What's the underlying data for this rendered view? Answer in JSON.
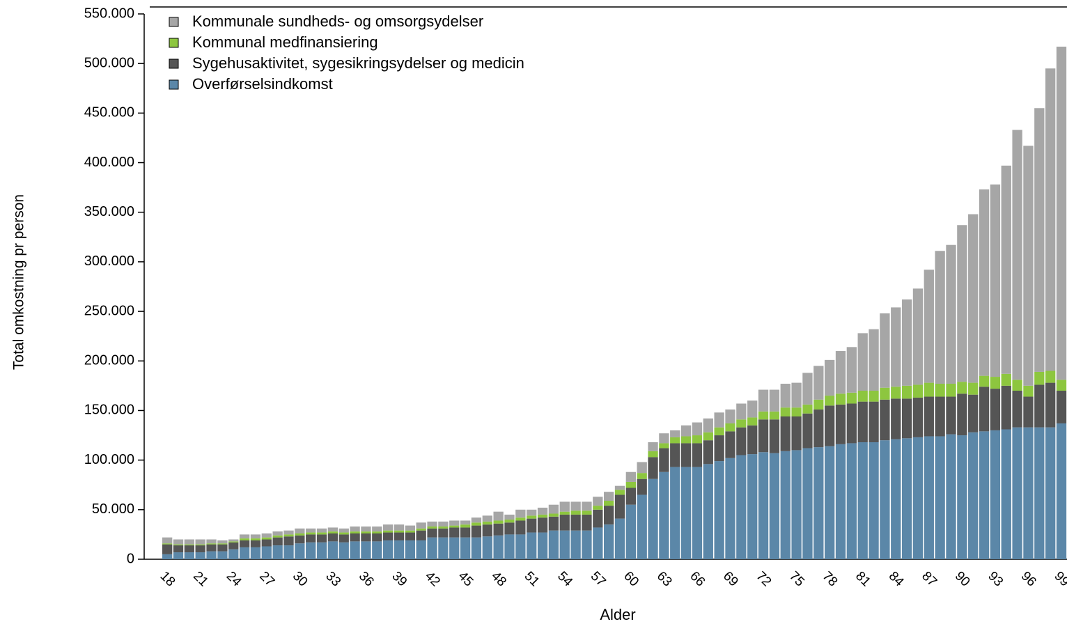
{
  "chart_data": {
    "type": "stacked_bar",
    "ylabel": "Total omkostning pr person",
    "xlabel": "Alder",
    "categories": [
      "18",
      null,
      null,
      "21",
      null,
      null,
      "24",
      null,
      null,
      "27",
      null,
      null,
      "30",
      null,
      null,
      "33",
      null,
      null,
      "36",
      null,
      null,
      "39",
      null,
      null,
      "42",
      null,
      null,
      "45",
      null,
      null,
      "48",
      null,
      null,
      "51",
      null,
      null,
      "54",
      null,
      null,
      "57",
      null,
      null,
      "60",
      null,
      null,
      "63",
      null,
      null,
      "66",
      null,
      null,
      "69",
      null,
      null,
      "72",
      null,
      null,
      "75",
      null,
      null,
      "78",
      null,
      null,
      "81",
      null,
      null,
      "84",
      null,
      null,
      "87",
      null,
      null,
      "90",
      null,
      null,
      "93",
      null,
      null,
      "96",
      null,
      null,
      "99"
    ],
    "series": [
      {
        "name": "Kommunale sundheds- og omsorgsydelser",
        "color": "#a6a6a6",
        "values": [
          6000,
          5000,
          5000,
          5000,
          4000,
          3000,
          2000,
          4000,
          4000,
          4000,
          4000,
          4000,
          5000,
          4000,
          4000,
          4000,
          4000,
          5000,
          5000,
          5000,
          6000,
          6000,
          5000,
          6000,
          5000,
          5000,
          5000,
          4000,
          5000,
          6000,
          9000,
          5000,
          8000,
          6000,
          7000,
          9000,
          10000,
          9000,
          9000,
          9000,
          9000,
          4000,
          10000,
          11000,
          9000,
          10000,
          7000,
          11000,
          13000,
          14000,
          15000,
          14000,
          16000,
          17000,
          22000,
          22000,
          24000,
          25000,
          32000,
          34000,
          36000,
          43000,
          46000,
          58000,
          62000,
          75000,
          80000,
          87000,
          97000,
          114000,
          134000,
          140000,
          158000,
          170000,
          188000,
          194000,
          210000,
          252000,
          242000,
          266000,
          305000,
          336000
        ]
      },
      {
        "name": "Kommunal medfinansiering",
        "color": "#8dc63f",
        "values": [
          1000,
          1000,
          1000,
          1000,
          1000,
          1000,
          1000,
          2000,
          2000,
          2000,
          2000,
          2000,
          2000,
          2000,
          2000,
          2000,
          2000,
          2000,
          2000,
          2000,
          2000,
          2000,
          2000,
          2000,
          2000,
          2000,
          2000,
          3000,
          3000,
          3000,
          3000,
          3000,
          3000,
          3000,
          3000,
          3000,
          3000,
          4000,
          4000,
          4000,
          5000,
          5000,
          6000,
          6000,
          6000,
          5000,
          6000,
          7000,
          8000,
          8000,
          8000,
          8000,
          8000,
          8000,
          8000,
          8000,
          9000,
          9000,
          9000,
          10000,
          10000,
          11000,
          11000,
          11000,
          11000,
          12000,
          12000,
          13000,
          13000,
          14000,
          13000,
          13000,
          12000,
          12000,
          11000,
          12000,
          12000,
          11000,
          11000,
          13000,
          12000,
          11000
        ]
      },
      {
        "name": "Sygehusaktivitet, sygesikringsydelser og medicin",
        "color": "#555555",
        "values": [
          10000,
          7000,
          7000,
          7000,
          7000,
          7000,
          7000,
          7000,
          7000,
          7000,
          8000,
          9000,
          8000,
          8000,
          8000,
          8000,
          8000,
          8000,
          8000,
          8000,
          8000,
          8000,
          8000,
          10000,
          9000,
          9000,
          10000,
          10000,
          12000,
          12000,
          12000,
          12000,
          14000,
          14000,
          15000,
          14000,
          16000,
          16000,
          16000,
          18000,
          19000,
          24000,
          17000,
          16000,
          22000,
          24000,
          24000,
          24000,
          24000,
          24000,
          26000,
          27000,
          28000,
          29000,
          33000,
          34000,
          35000,
          34000,
          35000,
          38000,
          41000,
          40000,
          40000,
          41000,
          41000,
          41000,
          41000,
          40000,
          40000,
          40000,
          40000,
          38000,
          42000,
          38000,
          45000,
          42000,
          44000,
          37000,
          31000,
          43000,
          45000,
          33000
        ]
      },
      {
        "name": "Overførselsindkomst",
        "color": "#5b87a8",
        "values": [
          5000,
          7000,
          7000,
          7000,
          8000,
          8000,
          10000,
          12000,
          12000,
          13000,
          14000,
          14000,
          16000,
          17000,
          17000,
          18000,
          17000,
          18000,
          18000,
          18000,
          19000,
          19000,
          19000,
          19000,
          22000,
          22000,
          22000,
          22000,
          22000,
          23000,
          24000,
          25000,
          25000,
          27000,
          27000,
          29000,
          29000,
          29000,
          29000,
          32000,
          35000,
          41000,
          55000,
          65000,
          81000,
          88000,
          93000,
          93000,
          93000,
          96000,
          99000,
          102000,
          105000,
          106000,
          108000,
          107000,
          109000,
          110000,
          112000,
          113000,
          114000,
          116000,
          117000,
          118000,
          118000,
          120000,
          121000,
          122000,
          123000,
          124000,
          124000,
          126000,
          125000,
          128000,
          129000,
          130000,
          131000,
          133000,
          133000,
          133000,
          133000,
          137000
        ]
      }
    ],
    "ylim": [
      0,
      550000
    ],
    "yticks": [
      {
        "value": 0,
        "label": "0"
      },
      {
        "value": 50000,
        "label": "50.000"
      },
      {
        "value": 100000,
        "label": "100.000"
      },
      {
        "value": 150000,
        "label": "150.000"
      },
      {
        "value": 200000,
        "label": "200.000"
      },
      {
        "value": 250000,
        "label": "250.000"
      },
      {
        "value": 300000,
        "label": "300.000"
      },
      {
        "value": 350000,
        "label": "350.000"
      },
      {
        "value": 400000,
        "label": "400.000"
      },
      {
        "value": 450000,
        "label": "450.000"
      },
      {
        "value": 500000,
        "label": "500.000"
      },
      {
        "value": 550000,
        "label": "550.000"
      }
    ],
    "legend": "upper left",
    "grid": false
  }
}
